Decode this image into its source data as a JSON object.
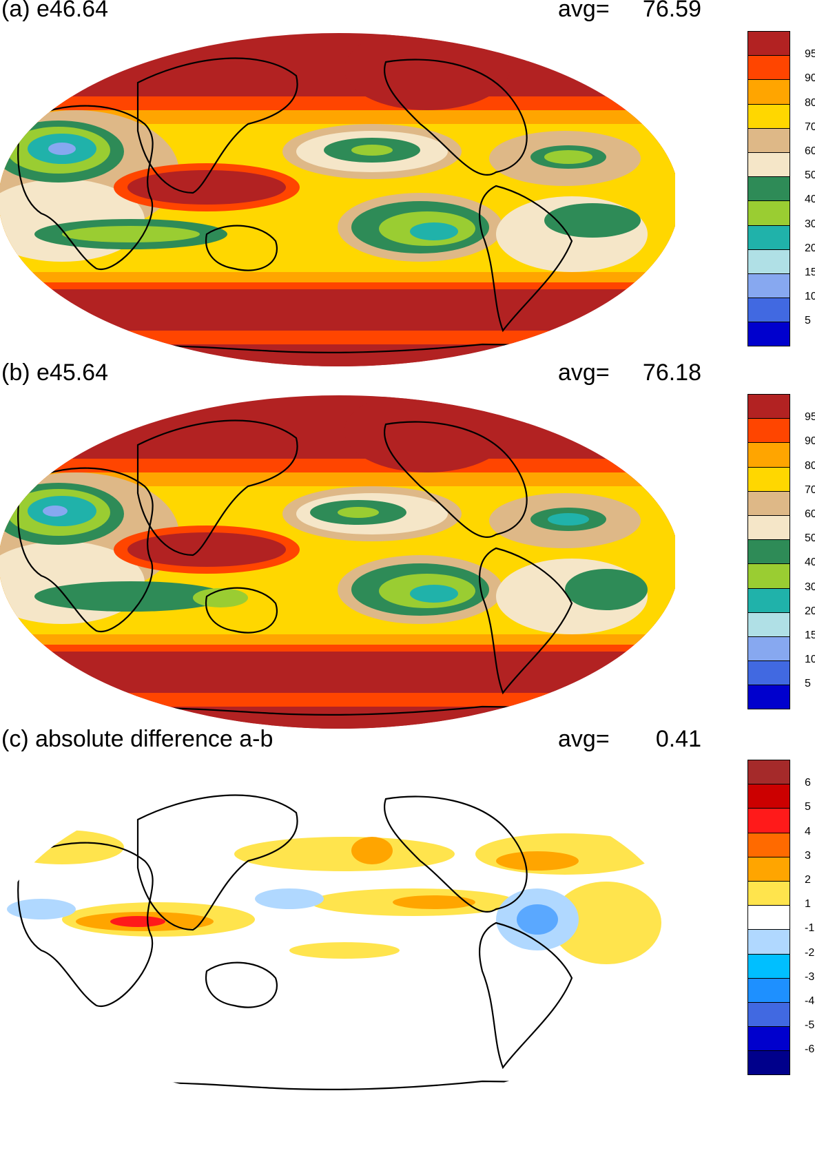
{
  "panels": [
    {
      "id": "a",
      "title": "(a) e46.64",
      "avg_label": "avg=",
      "avg_value": "76.59",
      "colorbar": {
        "labels": [
          "95",
          "90",
          "80",
          "70",
          "60",
          "50",
          "40",
          "30",
          "20",
          "15",
          "10",
          "5"
        ],
        "colors": [
          "#b22222",
          "#ff4500",
          "#ffa500",
          "#ffd700",
          "#deb887",
          "#f5e6c8",
          "#2e8b57",
          "#9acd32",
          "#20b2aa",
          "#b0e0e6",
          "#87a8f0",
          "#4169e1",
          "#0000cd"
        ]
      }
    },
    {
      "id": "b",
      "title": "(b) e45.64",
      "avg_label": "avg=",
      "avg_value": "76.18",
      "colorbar": {
        "labels": [
          "95",
          "90",
          "80",
          "70",
          "60",
          "50",
          "40",
          "30",
          "20",
          "15",
          "10",
          "5"
        ],
        "colors": [
          "#b22222",
          "#ff4500",
          "#ffa500",
          "#ffd700",
          "#deb887",
          "#f5e6c8",
          "#2e8b57",
          "#9acd32",
          "#20b2aa",
          "#b0e0e6",
          "#87a8f0",
          "#4169e1",
          "#0000cd"
        ]
      }
    },
    {
      "id": "c",
      "title": "(c) absolute difference a-b",
      "avg_label": "avg=",
      "avg_value": "0.41",
      "colorbar": {
        "labels": [
          "6",
          "5",
          "4",
          "3",
          "2",
          "1",
          "-1",
          "-2",
          "-3",
          "-4",
          "-5",
          "-6"
        ],
        "colors": [
          "#a52a2a",
          "#cc0000",
          "#ff1a1a",
          "#ff6a00",
          "#ffa500",
          "#ffe44d",
          "#ffffff",
          "#b0d8ff",
          "#00bfff",
          "#1e90ff",
          "#4169e1",
          "#0000cd",
          "#00008b"
        ]
      }
    }
  ]
}
